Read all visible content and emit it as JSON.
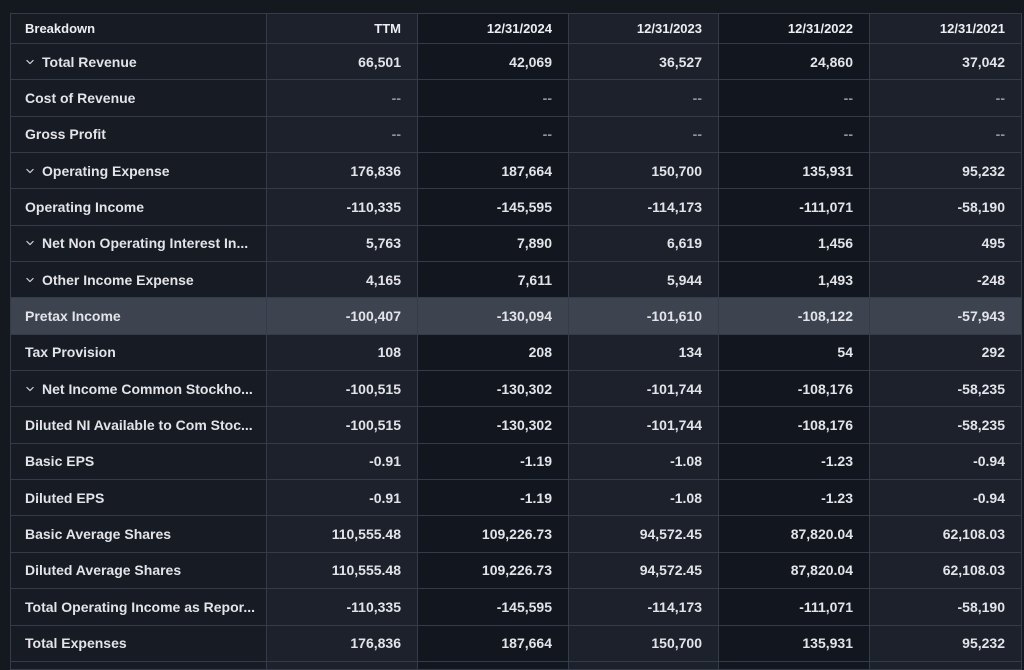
{
  "colors": {
    "page_background": "#14181f",
    "breakdown_column_background": "#171b24",
    "column_dark": "#12161e",
    "column_light": "#1c212b",
    "highlight_row": "#3d4450",
    "border": "#353c49",
    "text": "#e2e4e8",
    "muted_dash": "#8f959f"
  },
  "table": {
    "header": [
      "Breakdown",
      "TTM",
      "12/31/2024",
      "12/31/2023",
      "12/31/2022",
      "12/31/2021"
    ],
    "rows": [
      {
        "label": "Total Revenue",
        "expandable": true,
        "highlight": false,
        "values": [
          "66,501",
          "42,069",
          "36,527",
          "24,860",
          "37,042"
        ]
      },
      {
        "label": "Cost of Revenue",
        "expandable": false,
        "highlight": false,
        "values": [
          "--",
          "--",
          "--",
          "--",
          "--"
        ]
      },
      {
        "label": "Gross Profit",
        "expandable": false,
        "highlight": false,
        "values": [
          "--",
          "--",
          "--",
          "--",
          "--"
        ]
      },
      {
        "label": "Operating Expense",
        "expandable": true,
        "highlight": false,
        "values": [
          "176,836",
          "187,664",
          "150,700",
          "135,931",
          "95,232"
        ]
      },
      {
        "label": "Operating Income",
        "expandable": false,
        "highlight": false,
        "values": [
          "-110,335",
          "-145,595",
          "-114,173",
          "-111,071",
          "-58,190"
        ]
      },
      {
        "label": "Net Non Operating Interest In...",
        "expandable": true,
        "highlight": false,
        "values": [
          "5,763",
          "7,890",
          "6,619",
          "1,456",
          "495"
        ]
      },
      {
        "label": "Other Income Expense",
        "expandable": true,
        "highlight": false,
        "values": [
          "4,165",
          "7,611",
          "5,944",
          "1,493",
          "-248"
        ]
      },
      {
        "label": "Pretax Income",
        "expandable": false,
        "highlight": true,
        "values": [
          "-100,407",
          "-130,094",
          "-101,610",
          "-108,122",
          "-57,943"
        ]
      },
      {
        "label": "Tax Provision",
        "expandable": false,
        "highlight": false,
        "values": [
          "108",
          "208",
          "134",
          "54",
          "292"
        ]
      },
      {
        "label": "Net Income Common Stockho...",
        "expandable": true,
        "highlight": false,
        "values": [
          "-100,515",
          "-130,302",
          "-101,744",
          "-108,176",
          "-58,235"
        ]
      },
      {
        "label": "Diluted NI Available to Com Stoc...",
        "expandable": false,
        "highlight": false,
        "values": [
          "-100,515",
          "-130,302",
          "-101,744",
          "-108,176",
          "-58,235"
        ]
      },
      {
        "label": "Basic EPS",
        "expandable": false,
        "highlight": false,
        "values": [
          "-0.91",
          "-1.19",
          "-1.08",
          "-1.23",
          "-0.94"
        ]
      },
      {
        "label": "Diluted EPS",
        "expandable": false,
        "highlight": false,
        "values": [
          "-0.91",
          "-1.19",
          "-1.08",
          "-1.23",
          "-0.94"
        ]
      },
      {
        "label": "Basic Average Shares",
        "expandable": false,
        "highlight": false,
        "values": [
          "110,555.48",
          "109,226.73",
          "94,572.45",
          "87,820.04",
          "62,108.03"
        ]
      },
      {
        "label": "Diluted Average Shares",
        "expandable": false,
        "highlight": false,
        "values": [
          "110,555.48",
          "109,226.73",
          "94,572.45",
          "87,820.04",
          "62,108.03"
        ]
      },
      {
        "label": "Total Operating Income as Repor...",
        "expandable": false,
        "highlight": false,
        "values": [
          "-110,335",
          "-145,595",
          "-114,173",
          "-111,071",
          "-58,190"
        ]
      },
      {
        "label": "Total Expenses",
        "expandable": false,
        "highlight": false,
        "values": [
          "176,836",
          "187,664",
          "150,700",
          "135,931",
          "95,232"
        ]
      }
    ]
  }
}
